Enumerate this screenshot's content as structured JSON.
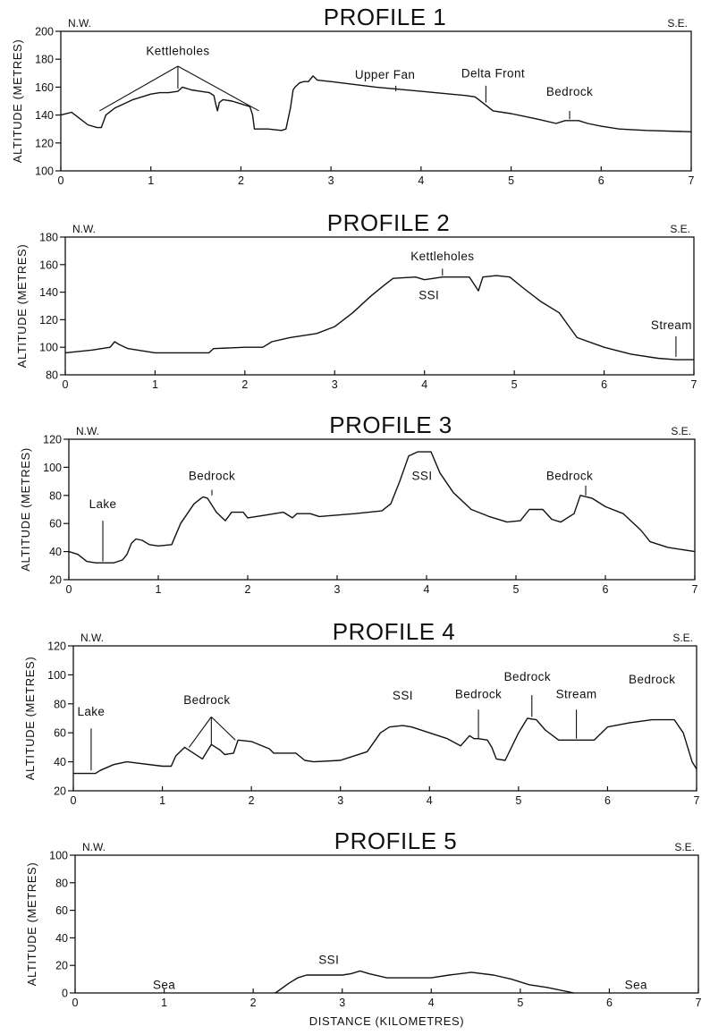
{
  "chart_data": [
    {
      "type": "line",
      "title": "PROFILE 1",
      "left_label": "N.W.",
      "right_label": "S.E.",
      "ylabel": "ALTITUDE (METRES)",
      "xlabel": "",
      "xlim": [
        0,
        7
      ],
      "ylim": [
        100,
        200
      ],
      "x_ticks": [
        "0",
        "1",
        "2",
        "3",
        "4",
        "5",
        "6",
        "7"
      ],
      "y_ticks": [
        "100",
        "120",
        "140",
        "160",
        "180",
        "200"
      ],
      "grid": false,
      "series": [
        {
          "points": [
            [
              0,
              140
            ],
            [
              0.12,
              142
            ],
            [
              0.2,
              138
            ],
            [
              0.3,
              133
            ],
            [
              0.4,
              131
            ],
            [
              0.45,
              131
            ],
            [
              0.5,
              140
            ],
            [
              0.6,
              145
            ],
            [
              0.7,
              148
            ],
            [
              0.8,
              151
            ],
            [
              0.9,
              153
            ],
            [
              1.0,
              155
            ],
            [
              1.1,
              156
            ],
            [
              1.2,
              156
            ],
            [
              1.3,
              157
            ],
            [
              1.35,
              160
            ],
            [
              1.45,
              158
            ],
            [
              1.55,
              157
            ],
            [
              1.65,
              156
            ],
            [
              1.7,
              154
            ],
            [
              1.72,
              148
            ],
            [
              1.74,
              143
            ],
            [
              1.76,
              149
            ],
            [
              1.8,
              151
            ],
            [
              1.9,
              150
            ],
            [
              2.0,
              148
            ],
            [
              2.1,
              146
            ],
            [
              2.13,
              140
            ],
            [
              2.15,
              130
            ],
            [
              2.3,
              130
            ],
            [
              2.45,
              129
            ],
            [
              2.5,
              130
            ],
            [
              2.55,
              145
            ],
            [
              2.58,
              158
            ],
            [
              2.6,
              160
            ],
            [
              2.65,
              163
            ],
            [
              2.7,
              164
            ],
            [
              2.75,
              164
            ],
            [
              2.8,
              168
            ],
            [
              2.85,
              165
            ],
            [
              3.0,
              164
            ],
            [
              3.5,
              160
            ],
            [
              4.0,
              157
            ],
            [
              4.5,
              154
            ],
            [
              4.6,
              153
            ],
            [
              4.7,
              148
            ],
            [
              4.8,
              143
            ],
            [
              5.0,
              141
            ],
            [
              5.3,
              137
            ],
            [
              5.5,
              134
            ],
            [
              5.6,
              136
            ],
            [
              5.75,
              136
            ],
            [
              5.85,
              134
            ],
            [
              6.0,
              132
            ],
            [
              6.2,
              130
            ],
            [
              6.5,
              129
            ],
            [
              7.0,
              128
            ]
          ]
        }
      ],
      "annotations": [
        {
          "text": "Kettleholes",
          "x": 1.3,
          "y": 183
        },
        {
          "text": "Upper Fan",
          "x": 3.6,
          "y": 166
        },
        {
          "text": "Delta Front",
          "x": 4.8,
          "y": 167
        },
        {
          "text": "Bedrock",
          "x": 5.65,
          "y": 154
        }
      ]
    },
    {
      "type": "line",
      "title": "PROFILE 2",
      "left_label": "N.W.",
      "right_label": "S.E.",
      "ylabel": "ALTITUDE (METRES)",
      "xlabel": "",
      "xlim": [
        0,
        7
      ],
      "ylim": [
        80,
        180
      ],
      "x_ticks": [
        "0",
        "1",
        "2",
        "3",
        "4",
        "5",
        "6",
        "7"
      ],
      "y_ticks": [
        "80",
        "100",
        "120",
        "140",
        "160",
        "180"
      ],
      "grid": false,
      "series": [
        {
          "points": [
            [
              0,
              96
            ],
            [
              0.3,
              98
            ],
            [
              0.5,
              100
            ],
            [
              0.55,
              104
            ],
            [
              0.6,
              102
            ],
            [
              0.7,
              99
            ],
            [
              1.0,
              96
            ],
            [
              1.5,
              96
            ],
            [
              1.6,
              96
            ],
            [
              1.65,
              99
            ],
            [
              2.0,
              100
            ],
            [
              2.2,
              100
            ],
            [
              2.3,
              104
            ],
            [
              2.5,
              107
            ],
            [
              2.8,
              110
            ],
            [
              3.0,
              115
            ],
            [
              3.2,
              125
            ],
            [
              3.4,
              137
            ],
            [
              3.55,
              145
            ],
            [
              3.65,
              150
            ],
            [
              3.9,
              151
            ],
            [
              4.0,
              149
            ],
            [
              4.1,
              150
            ],
            [
              4.2,
              151
            ],
            [
              4.5,
              151
            ],
            [
              4.55,
              146
            ],
            [
              4.6,
              141
            ],
            [
              4.65,
              151
            ],
            [
              4.8,
              152
            ],
            [
              4.95,
              151
            ],
            [
              5.1,
              143
            ],
            [
              5.3,
              133
            ],
            [
              5.5,
              125
            ],
            [
              5.6,
              116
            ],
            [
              5.7,
              107
            ],
            [
              6.0,
              100
            ],
            [
              6.3,
              95
            ],
            [
              6.6,
              92
            ],
            [
              6.8,
              91
            ],
            [
              7.0,
              91
            ]
          ]
        }
      ],
      "annotations": [
        {
          "text": "Kettleholes",
          "x": 4.2,
          "y": 163
        },
        {
          "text": "SSI",
          "x": 4.05,
          "y": 135
        },
        {
          "text": "Stream",
          "x": 6.75,
          "y": 113
        }
      ]
    },
    {
      "type": "line",
      "title": "PROFILE 3",
      "left_label": "N.W.",
      "right_label": "S.E.",
      "ylabel": "ALTITUDE (METRES)",
      "xlabel": "",
      "xlim": [
        0,
        7
      ],
      "ylim": [
        20,
        120
      ],
      "x_ticks": [
        "0",
        "1",
        "2",
        "3",
        "4",
        "5",
        "6",
        "7"
      ],
      "y_ticks": [
        "20",
        "40",
        "60",
        "80",
        "100",
        "120"
      ],
      "grid": false,
      "series": [
        {
          "points": [
            [
              0,
              40
            ],
            [
              0.1,
              38
            ],
            [
              0.2,
              33
            ],
            [
              0.3,
              32
            ],
            [
              0.5,
              32
            ],
            [
              0.6,
              34
            ],
            [
              0.65,
              38
            ],
            [
              0.7,
              46
            ],
            [
              0.75,
              49
            ],
            [
              0.82,
              48
            ],
            [
              0.9,
              45
            ],
            [
              1.0,
              44
            ],
            [
              1.15,
              45
            ],
            [
              1.25,
              60
            ],
            [
              1.4,
              74
            ],
            [
              1.5,
              79
            ],
            [
              1.55,
              78
            ],
            [
              1.65,
              68
            ],
            [
              1.75,
              62
            ],
            [
              1.82,
              68
            ],
            [
              1.95,
              68
            ],
            [
              2.0,
              64
            ],
            [
              2.2,
              66
            ],
            [
              2.4,
              68
            ],
            [
              2.5,
              64
            ],
            [
              2.55,
              67
            ],
            [
              2.7,
              67
            ],
            [
              2.8,
              65
            ],
            [
              3.0,
              66
            ],
            [
              3.2,
              67
            ],
            [
              3.5,
              69
            ],
            [
              3.6,
              74
            ],
            [
              3.7,
              90
            ],
            [
              3.8,
              108
            ],
            [
              3.9,
              111
            ],
            [
              4.05,
              111
            ],
            [
              4.15,
              96
            ],
            [
              4.3,
              82
            ],
            [
              4.5,
              70
            ],
            [
              4.7,
              65
            ],
            [
              4.9,
              61
            ],
            [
              5.05,
              62
            ],
            [
              5.15,
              70
            ],
            [
              5.3,
              70
            ],
            [
              5.4,
              63
            ],
            [
              5.5,
              61
            ],
            [
              5.65,
              67
            ],
            [
              5.72,
              80
            ],
            [
              5.85,
              78
            ],
            [
              6.0,
              72
            ],
            [
              6.2,
              67
            ],
            [
              6.4,
              55
            ],
            [
              6.5,
              47
            ],
            [
              6.7,
              43
            ],
            [
              7.0,
              40
            ]
          ]
        }
      ],
      "annotations": [
        {
          "text": "Lake",
          "x": 0.38,
          "y": 71
        },
        {
          "text": "Bedrock",
          "x": 1.6,
          "y": 91
        },
        {
          "text": "SSI",
          "x": 3.95,
          "y": 91
        },
        {
          "text": "Bedrock",
          "x": 5.6,
          "y": 91
        }
      ]
    },
    {
      "type": "line",
      "title": "PROFILE 4",
      "left_label": "N.W.",
      "right_label": "S.E.",
      "ylabel": "ALTITUDE (METRES)",
      "xlabel": "",
      "xlim": [
        0,
        7
      ],
      "ylim": [
        20,
        120
      ],
      "x_ticks": [
        "0",
        "1",
        "2",
        "3",
        "4",
        "5",
        "6",
        "7"
      ],
      "y_ticks": [
        "20",
        "40",
        "60",
        "80",
        "100",
        "120"
      ],
      "grid": false,
      "series": [
        {
          "points": [
            [
              0,
              32
            ],
            [
              0.25,
              32
            ],
            [
              0.3,
              34
            ],
            [
              0.45,
              38
            ],
            [
              0.6,
              40
            ],
            [
              1.0,
              37
            ],
            [
              1.1,
              37
            ],
            [
              1.15,
              44
            ],
            [
              1.25,
              50
            ],
            [
              1.35,
              46
            ],
            [
              1.45,
              42
            ],
            [
              1.55,
              52
            ],
            [
              1.65,
              48
            ],
            [
              1.7,
              45
            ],
            [
              1.8,
              46
            ],
            [
              1.85,
              55
            ],
            [
              2.0,
              54
            ],
            [
              2.2,
              49
            ],
            [
              2.25,
              46
            ],
            [
              2.5,
              46
            ],
            [
              2.6,
              41
            ],
            [
              2.7,
              40
            ],
            [
              3.0,
              41
            ],
            [
              3.3,
              47
            ],
            [
              3.45,
              60
            ],
            [
              3.55,
              64
            ],
            [
              3.7,
              65
            ],
            [
              3.8,
              64
            ],
            [
              4.0,
              60
            ],
            [
              4.2,
              56
            ],
            [
              4.35,
              51
            ],
            [
              4.45,
              58
            ],
            [
              4.5,
              56
            ],
            [
              4.55,
              56
            ],
            [
              4.65,
              55
            ],
            [
              4.7,
              50
            ],
            [
              4.75,
              42
            ],
            [
              4.85,
              41
            ],
            [
              5.0,
              60
            ],
            [
              5.1,
              70
            ],
            [
              5.2,
              69
            ],
            [
              5.3,
              62
            ],
            [
              5.45,
              55
            ],
            [
              5.85,
              55
            ],
            [
              6.0,
              64
            ],
            [
              6.25,
              67
            ],
            [
              6.5,
              69
            ],
            [
              6.75,
              69
            ],
            [
              6.85,
              60
            ],
            [
              6.95,
              40
            ],
            [
              7.0,
              35
            ]
          ]
        }
      ],
      "annotations": [
        {
          "text": "Lake",
          "x": 0.2,
          "y": 72
        },
        {
          "text": "Bedrock",
          "x": 1.5,
          "y": 80
        },
        {
          "text": "SSI",
          "x": 3.7,
          "y": 83
        },
        {
          "text": "Bedrock",
          "x": 4.55,
          "y": 84
        },
        {
          "text": "Bedrock",
          "x": 5.1,
          "y": 96
        },
        {
          "text": "Stream",
          "x": 5.65,
          "y": 84
        },
        {
          "text": "Bedrock",
          "x": 6.5,
          "y": 94
        }
      ]
    },
    {
      "type": "line",
      "title": "PROFILE 5",
      "left_label": "N.W.",
      "right_label": "S.E.",
      "ylabel": "ALTITUDE (METRES)",
      "xlabel": "DISTANCE (KILOMETRES)",
      "xlim": [
        0,
        7
      ],
      "ylim": [
        0,
        100
      ],
      "x_ticks": [
        "0",
        "1",
        "2",
        "3",
        "4",
        "5",
        "6",
        "7"
      ],
      "y_ticks": [
        "0",
        "20",
        "40",
        "60",
        "80",
        "100"
      ],
      "grid": false,
      "series": [
        {
          "points": [
            [
              2.25,
              0
            ],
            [
              2.4,
              7
            ],
            [
              2.5,
              11
            ],
            [
              2.6,
              13
            ],
            [
              2.8,
              13
            ],
            [
              3.0,
              13
            ],
            [
              3.1,
              14
            ],
            [
              3.2,
              16
            ],
            [
              3.3,
              14
            ],
            [
              3.5,
              11
            ],
            [
              4.0,
              11
            ],
            [
              4.2,
              13
            ],
            [
              4.45,
              15
            ],
            [
              4.7,
              13
            ],
            [
              4.9,
              10
            ],
            [
              5.1,
              6
            ],
            [
              5.3,
              4
            ],
            [
              5.6,
              0
            ]
          ]
        }
      ],
      "annotations": [
        {
          "text": "SSI",
          "x": 2.85,
          "y": 21
        },
        {
          "text": "Sea",
          "x": 1.0,
          "y": 3
        },
        {
          "text": "Sea",
          "x": 6.3,
          "y": 3
        }
      ]
    }
  ]
}
